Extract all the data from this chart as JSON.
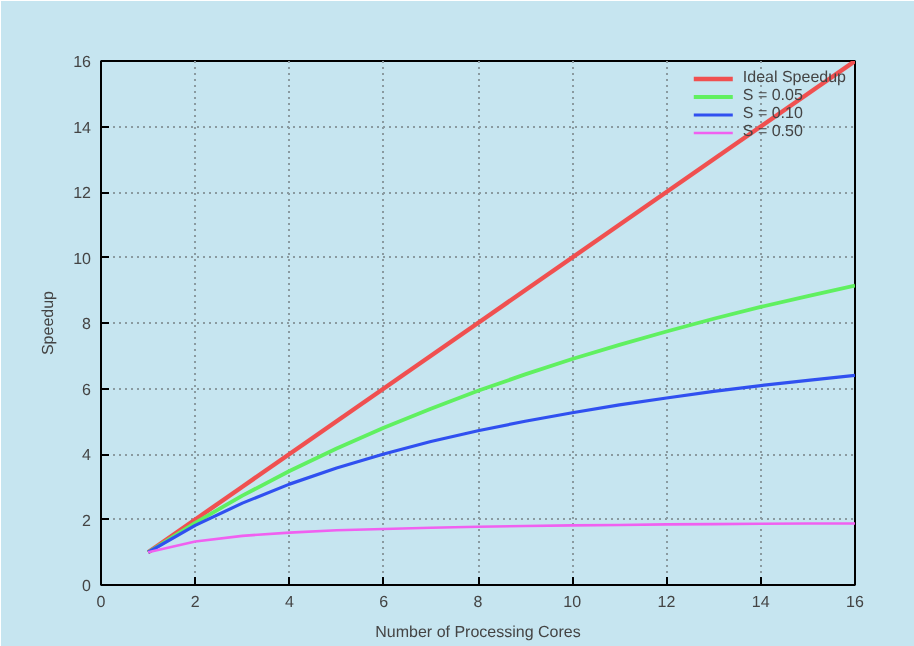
{
  "chart_data": {
    "type": "line",
    "xlabel": "Number of Processing Cores",
    "ylabel": "Speedup",
    "x": [
      1,
      2,
      3,
      4,
      5,
      6,
      7,
      8,
      9,
      10,
      11,
      12,
      13,
      14,
      15,
      16
    ],
    "xlim": [
      0,
      16
    ],
    "ylim": [
      0,
      16
    ],
    "xticks": [
      0,
      2,
      4,
      6,
      8,
      10,
      12,
      14,
      16
    ],
    "yticks": [
      0,
      2,
      4,
      6,
      8,
      10,
      12,
      14,
      16
    ],
    "grid": true,
    "legend": "top right",
    "marker": "none",
    "line_style": "solid",
    "series": [
      {
        "name": "Ideal Speedup",
        "color": "#f05050",
        "values": [
          1,
          2,
          3,
          4,
          5,
          6,
          7,
          8,
          9,
          10,
          11,
          12,
          13,
          14,
          15,
          16
        ]
      },
      {
        "name": "S = 0.05",
        "color": "#60f060",
        "values": [
          1,
          1.9,
          2.73,
          3.48,
          4.17,
          4.8,
          5.38,
          5.93,
          6.43,
          6.9,
          7.33,
          7.74,
          8.13,
          8.49,
          8.82,
          9.14
        ]
      },
      {
        "name": "S = 0.10",
        "color": "#3050f0",
        "values": [
          1,
          1.82,
          2.5,
          3.08,
          3.57,
          4,
          4.38,
          4.71,
          5,
          5.26,
          5.5,
          5.71,
          5.91,
          6.09,
          6.25,
          6.4
        ]
      },
      {
        "name": "S = 0.50",
        "color": "#f060f0",
        "values": [
          1,
          1.33,
          1.5,
          1.6,
          1.67,
          1.71,
          1.75,
          1.78,
          1.8,
          1.82,
          1.83,
          1.85,
          1.86,
          1.87,
          1.88,
          1.88
        ]
      }
    ]
  }
}
